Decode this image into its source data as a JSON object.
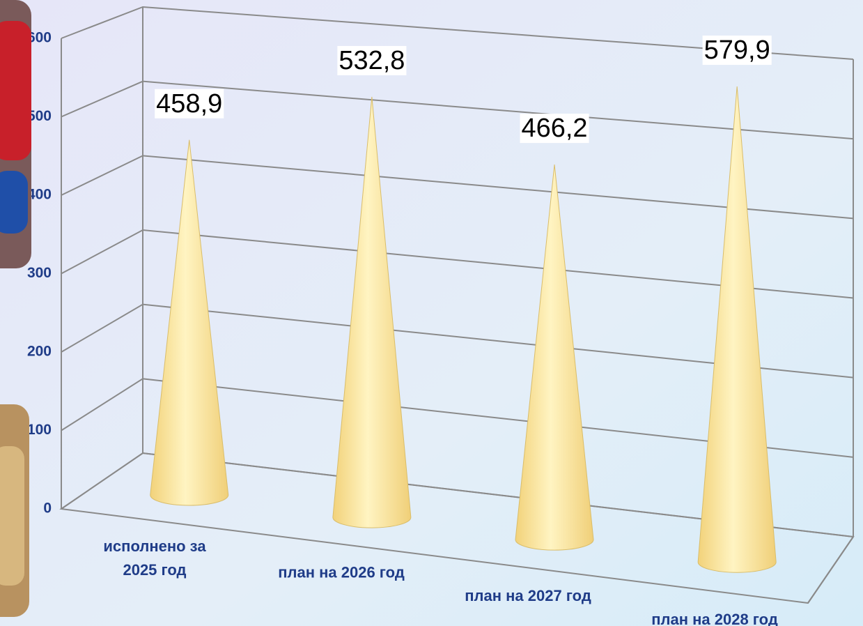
{
  "chart_data": {
    "type": "cone3d",
    "categories": [
      "исполнено за 2025 год",
      "план на 2026 год",
      "план на 2027 год",
      "план на 2028 год"
    ],
    "values": [
      458.9,
      532.8,
      466.2,
      579.9
    ],
    "value_labels": [
      "458,9",
      "532,8",
      "466,2",
      "579,9"
    ],
    "color": "#f8e08e",
    "ylim": [
      0,
      600
    ],
    "yticks": [
      0,
      100,
      200,
      300,
      400,
      500,
      600
    ],
    "grid": true
  }
}
